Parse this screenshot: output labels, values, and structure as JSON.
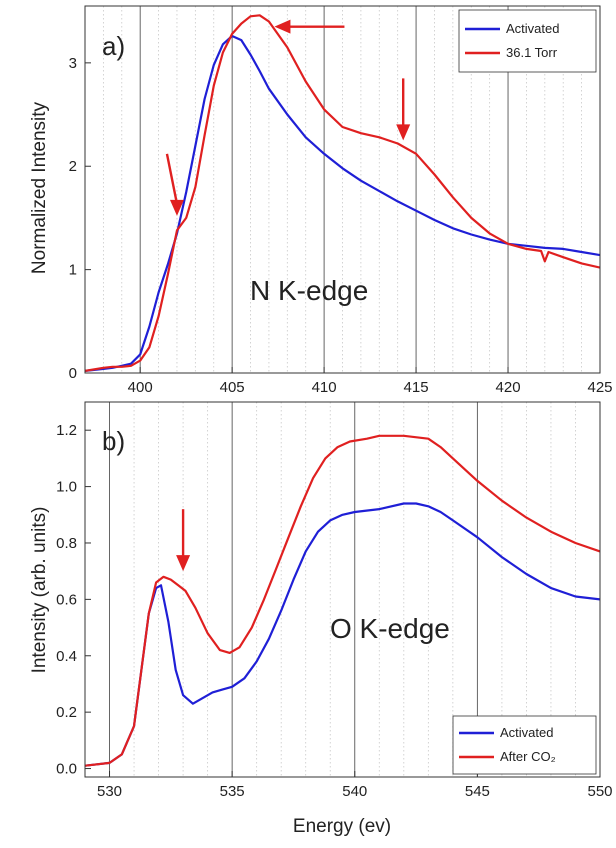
{
  "chart_data": [
    {
      "type": "line",
      "panel_label": "a)",
      "annotation": "N K-edge",
      "xlabel": "",
      "ylabel": "Normalized Intensity",
      "xlim": [
        397,
        425
      ],
      "ylim": [
        0,
        3.55
      ],
      "xticks": [
        400,
        405,
        410,
        415,
        420,
        425
      ],
      "xtick_labels": [
        "400",
        "405",
        "410",
        "415",
        "420",
        "425"
      ],
      "yticks": [
        0,
        1,
        2,
        3
      ],
      "ytick_labels": [
        "0",
        "1",
        "2",
        "3"
      ],
      "major_gridlines_x": [
        400,
        405,
        410,
        415,
        420
      ],
      "minor_gridlines": true,
      "legend_position": "top-right",
      "series": [
        {
          "name": "Activated",
          "color": "#1f1fd6",
          "x": [
            397,
            398,
            398.5,
            399,
            399.5,
            400,
            400.5,
            401,
            401.5,
            402,
            402.5,
            403,
            403.5,
            404,
            404.5,
            405,
            405.5,
            406,
            406.5,
            407,
            408,
            409,
            410,
            411,
            412,
            413,
            414,
            415,
            416,
            417,
            418,
            419,
            420,
            421,
            422,
            423,
            424,
            425
          ],
          "y": [
            0.02,
            0.04,
            0.05,
            0.07,
            0.09,
            0.18,
            0.45,
            0.78,
            1.05,
            1.35,
            1.75,
            2.2,
            2.65,
            2.98,
            3.18,
            3.26,
            3.22,
            3.08,
            2.92,
            2.75,
            2.5,
            2.28,
            2.12,
            1.98,
            1.86,
            1.76,
            1.66,
            1.57,
            1.48,
            1.4,
            1.34,
            1.29,
            1.25,
            1.23,
            1.21,
            1.2,
            1.17,
            1.14
          ]
        },
        {
          "name": "36.1 Torr",
          "color": "#e02020",
          "x": [
            397,
            398,
            398.5,
            399,
            399.5,
            400,
            400.5,
            401,
            401.5,
            402,
            402.5,
            403,
            403.5,
            404,
            404.5,
            405,
            405.5,
            406,
            406.5,
            407,
            408,
            409,
            410,
            411,
            412,
            413,
            414,
            415,
            416,
            417,
            418,
            419,
            420,
            421,
            421.8,
            422,
            422.2,
            423,
            424,
            425
          ],
          "y": [
            0.02,
            0.05,
            0.06,
            0.06,
            0.07,
            0.12,
            0.25,
            0.55,
            0.95,
            1.38,
            1.5,
            1.8,
            2.3,
            2.78,
            3.1,
            3.28,
            3.38,
            3.45,
            3.46,
            3.4,
            3.15,
            2.82,
            2.55,
            2.38,
            2.32,
            2.28,
            2.22,
            2.12,
            1.92,
            1.7,
            1.5,
            1.35,
            1.25,
            1.2,
            1.18,
            1.08,
            1.17,
            1.12,
            1.06,
            1.02
          ]
        }
      ],
      "arrows": [
        {
          "x": 407.3,
          "y": 3.35,
          "direction": "left"
        },
        {
          "x": 402,
          "y": 1.52,
          "direction": "down"
        },
        {
          "x": 414.3,
          "y": 2.25,
          "direction": "down"
        }
      ]
    },
    {
      "type": "line",
      "panel_label": "b)",
      "annotation": "O K-edge",
      "xlabel": "Energy (ev)",
      "ylabel": "Intensity (arb. units)",
      "xlim": [
        529,
        550
      ],
      "ylim": [
        -0.03,
        1.3
      ],
      "xticks": [
        530,
        535,
        540,
        545,
        550
      ],
      "xtick_labels": [
        "530",
        "535",
        "540",
        "545",
        "550"
      ],
      "yticks": [
        0,
        0.2,
        0.4,
        0.6,
        0.8,
        1.0,
        1.2
      ],
      "ytick_labels": [
        "0.0",
        "0.2",
        "0.4",
        "0.6",
        "0.8",
        "1.0",
        "1.2"
      ],
      "major_gridlines_x": [
        530,
        535,
        540,
        545
      ],
      "minor_gridlines": true,
      "legend_position": "bottom-right",
      "series": [
        {
          "name": "Activated",
          "color": "#1f1fd6",
          "x": [
            529,
            530,
            530.5,
            531,
            531.3,
            531.6,
            531.9,
            532.1,
            532.4,
            532.7,
            533,
            533.4,
            533.8,
            534.2,
            534.6,
            535,
            535.5,
            536,
            536.5,
            537,
            537.5,
            538,
            538.5,
            539,
            539.5,
            540,
            541,
            542,
            542.5,
            543,
            543.5,
            544,
            545,
            546,
            547,
            548,
            549,
            550
          ],
          "y": [
            0.01,
            0.02,
            0.05,
            0.15,
            0.35,
            0.55,
            0.64,
            0.65,
            0.52,
            0.35,
            0.26,
            0.23,
            0.25,
            0.27,
            0.28,
            0.29,
            0.32,
            0.38,
            0.46,
            0.56,
            0.67,
            0.77,
            0.84,
            0.88,
            0.9,
            0.91,
            0.92,
            0.94,
            0.94,
            0.93,
            0.91,
            0.88,
            0.82,
            0.75,
            0.69,
            0.64,
            0.61,
            0.6
          ]
        },
        {
          "name": "After CO₂",
          "color": "#e02020",
          "x": [
            529,
            530,
            530.5,
            531,
            531.3,
            531.6,
            531.9,
            532.2,
            532.5,
            532.8,
            533.1,
            533.5,
            534,
            534.5,
            534.9,
            535.3,
            535.8,
            536.3,
            536.8,
            537.3,
            537.8,
            538.3,
            538.8,
            539.3,
            539.8,
            540.5,
            541,
            542,
            543,
            543.5,
            544,
            545,
            546,
            547,
            548,
            549,
            550
          ],
          "y": [
            0.01,
            0.02,
            0.05,
            0.15,
            0.35,
            0.55,
            0.66,
            0.68,
            0.67,
            0.65,
            0.63,
            0.57,
            0.48,
            0.42,
            0.41,
            0.43,
            0.5,
            0.6,
            0.71,
            0.82,
            0.93,
            1.03,
            1.1,
            1.14,
            1.16,
            1.17,
            1.18,
            1.18,
            1.17,
            1.14,
            1.1,
            1.02,
            0.95,
            0.89,
            0.84,
            0.8,
            0.77
          ]
        }
      ],
      "arrows": [
        {
          "x": 533,
          "y": 0.7,
          "direction": "down"
        }
      ]
    }
  ]
}
